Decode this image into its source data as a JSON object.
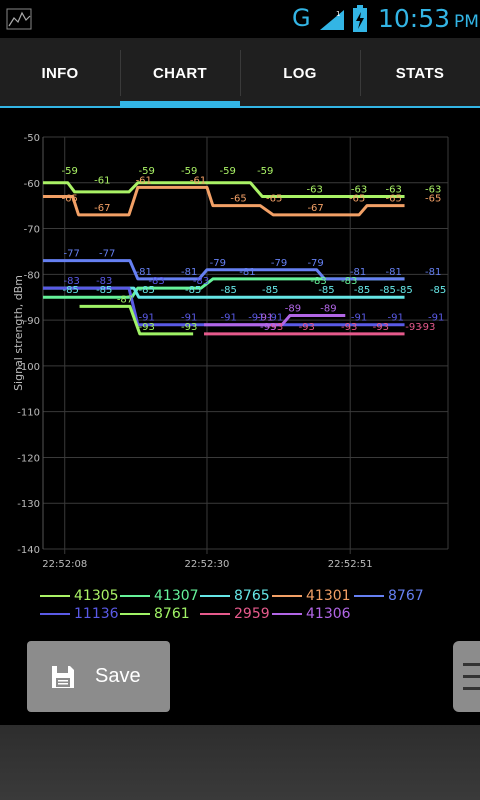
{
  "status": {
    "network": "G",
    "time": "10:53",
    "ampm": "PM",
    "accent_color": "#33b5e5"
  },
  "tabs": [
    {
      "label": "INFO",
      "selected": false
    },
    {
      "label": "CHART",
      "selected": true
    },
    {
      "label": "LOG",
      "selected": false
    },
    {
      "label": "STATS",
      "selected": false
    }
  ],
  "chart_data": {
    "type": "line",
    "ylabel": "Signal strength, dBm",
    "ylim": [
      -140,
      -50
    ],
    "yticks": [
      "-50",
      "-60",
      "-70",
      "-80",
      "-90",
      "-100",
      "-110",
      "-120",
      "-130",
      "-140"
    ],
    "xticks": [
      "22:52:08",
      "22:52:30",
      "22:52:51"
    ],
    "grid": true,
    "series": [
      {
        "name": "41305",
        "color": "#aaf266",
        "points": [
          [
            0,
            -60
          ],
          [
            2.5,
            -60
          ],
          [
            3.2,
            -62
          ],
          [
            8.7,
            -62
          ],
          [
            9.6,
            -60
          ],
          [
            21,
            -60
          ],
          [
            22.2,
            -63
          ],
          [
            36.6,
            -63
          ]
        ],
        "labels": [
          [
            2.7,
            -59,
            "-59"
          ],
          [
            6,
            -61,
            "-61"
          ],
          [
            10.5,
            -59,
            "-59"
          ],
          [
            14.8,
            -59,
            "-59"
          ],
          [
            18.7,
            -59,
            "-59"
          ],
          [
            22.5,
            -59,
            "-59"
          ],
          [
            27.5,
            -63,
            "-63"
          ],
          [
            32,
            -63,
            "-63"
          ],
          [
            35.5,
            -63,
            "-63"
          ],
          [
            39.5,
            -63,
            "-63"
          ]
        ]
      },
      {
        "name": "41307",
        "color": "#66f29a",
        "points": [
          [
            0,
            -85
          ],
          [
            9,
            -85
          ],
          [
            9.6,
            -83
          ],
          [
            16,
            -83
          ],
          [
            17.2,
            -81
          ],
          [
            36.6,
            -81
          ]
        ],
        "labels": [
          [
            27.9,
            -83,
            "-83"
          ],
          [
            31,
            -83,
            "-83"
          ]
        ]
      },
      {
        "name": "8765",
        "color": "#66e6e6",
        "points": [
          [
            0,
            -83
          ],
          [
            9.2,
            -83
          ],
          [
            9.7,
            -85
          ],
          [
            36.6,
            -85
          ]
        ],
        "labels": [
          [
            2.8,
            -85,
            "-85"
          ],
          [
            6.2,
            -85,
            "-85"
          ],
          [
            10.5,
            -85,
            "-85"
          ],
          [
            15.2,
            -85,
            "-85"
          ],
          [
            18.8,
            -85,
            "-85"
          ],
          [
            23,
            -85,
            "-85"
          ],
          [
            28.7,
            -85,
            "-85"
          ],
          [
            32.3,
            -85,
            "-85"
          ],
          [
            34.9,
            -85,
            "-85"
          ],
          [
            36.6,
            -85,
            "-85"
          ],
          [
            40,
            -85,
            "-85"
          ]
        ]
      },
      {
        "name": "41301",
        "color": "#f2a066",
        "points": [
          [
            0,
            -63
          ],
          [
            3,
            -63
          ],
          [
            3.6,
            -67
          ],
          [
            8.7,
            -67
          ],
          [
            9.6,
            -61
          ],
          [
            16.6,
            -61
          ],
          [
            17.2,
            -65
          ],
          [
            22,
            -65
          ],
          [
            23.3,
            -67
          ],
          [
            32,
            -67
          ],
          [
            32.8,
            -65
          ],
          [
            36.6,
            -65
          ]
        ],
        "labels": [
          [
            2.7,
            -65,
            "-65"
          ],
          [
            6,
            -67,
            "-67"
          ],
          [
            10.2,
            -61,
            "-61"
          ],
          [
            15.7,
            -61,
            "-61"
          ],
          [
            19.8,
            -65,
            "-65"
          ],
          [
            23.4,
            -65,
            "-65"
          ],
          [
            27.6,
            -67,
            "-67"
          ],
          [
            31.8,
            -65,
            "-65"
          ],
          [
            35.5,
            -65,
            "-65"
          ],
          [
            39.5,
            -65,
            "-65"
          ]
        ]
      },
      {
        "name": "8767",
        "color": "#6680f2",
        "points": [
          [
            0,
            -77
          ],
          [
            8.8,
            -77
          ],
          [
            9.6,
            -81
          ],
          [
            15.8,
            -81
          ],
          [
            16.6,
            -79
          ],
          [
            27.7,
            -79
          ],
          [
            28.5,
            -81
          ],
          [
            36.6,
            -81
          ]
        ],
        "labels": [
          [
            2.9,
            -77,
            "-77"
          ],
          [
            6.5,
            -77,
            "-77"
          ],
          [
            10.2,
            -81,
            "-81"
          ],
          [
            14.8,
            -81,
            "-81"
          ],
          [
            17.7,
            -79,
            "-79"
          ],
          [
            20.7,
            -81,
            "-81"
          ],
          [
            23.9,
            -79,
            "-79"
          ],
          [
            27.6,
            -79,
            "-79"
          ],
          [
            31.9,
            -81,
            "-81"
          ],
          [
            35.5,
            -81,
            "-81"
          ],
          [
            39.5,
            -81,
            "-81"
          ]
        ]
      },
      {
        "name": "11136",
        "color": "#5a5ae6",
        "points": [
          [
            0,
            -83
          ],
          [
            8.7,
            -83
          ],
          [
            9.6,
            -91
          ],
          [
            36.6,
            -91
          ]
        ],
        "labels": [
          [
            2.9,
            -83,
            "-83"
          ],
          [
            6.2,
            -83,
            "-83"
          ],
          [
            11.5,
            -83,
            "-83"
          ],
          [
            16,
            -83,
            "-83"
          ],
          [
            10.5,
            -91,
            "-91"
          ],
          [
            14.8,
            -91,
            "-91"
          ],
          [
            18.8,
            -91,
            "-91"
          ],
          [
            21.6,
            -91,
            "-91"
          ],
          [
            23.5,
            -91,
            "-91"
          ],
          [
            32,
            -91,
            "-91"
          ],
          [
            35.7,
            -91,
            "-91"
          ],
          [
            39.8,
            -91,
            "-91"
          ]
        ]
      },
      {
        "name": "8761",
        "color": "#a0f266",
        "points": [
          [
            3.7,
            -87
          ],
          [
            8.8,
            -87
          ],
          [
            9.8,
            -93
          ],
          [
            15.2,
            -93
          ]
        ],
        "labels": [
          [
            8.3,
            -87,
            "-87"
          ],
          [
            10.5,
            -93,
            "-93"
          ],
          [
            14.8,
            -93,
            "-93"
          ]
        ]
      },
      {
        "name": "2959",
        "color": "#e65a8c",
        "points": [
          [
            16.3,
            -93
          ],
          [
            36.6,
            -93
          ]
        ],
        "labels": [
          [
            23.5,
            -93,
            "-93"
          ],
          [
            26.7,
            -93,
            "-93"
          ],
          [
            31,
            -93,
            "-93"
          ],
          [
            34.2,
            -93,
            "-93"
          ],
          [
            37.5,
            -93,
            "-93"
          ],
          [
            38.9,
            -93,
            "-93"
          ]
        ]
      },
      {
        "name": "41306",
        "color": "#b266e6",
        "points": [
          [
            16.3,
            -91
          ],
          [
            24.2,
            -91
          ],
          [
            25,
            -89
          ],
          [
            30.6,
            -89
          ]
        ],
        "labels": [
          [
            22.5,
            -91,
            "-91"
          ],
          [
            25.3,
            -89,
            "-89"
          ],
          [
            28.9,
            -89,
            "-89"
          ],
          [
            22.8,
            -93,
            "-93"
          ]
        ]
      }
    ]
  },
  "legend_rows": [
    [
      "41305",
      "41307",
      "8765",
      "41301",
      "8767"
    ],
    [
      "11136",
      "8761",
      "2959",
      "41306"
    ]
  ],
  "save_button": {
    "label": "Save"
  }
}
